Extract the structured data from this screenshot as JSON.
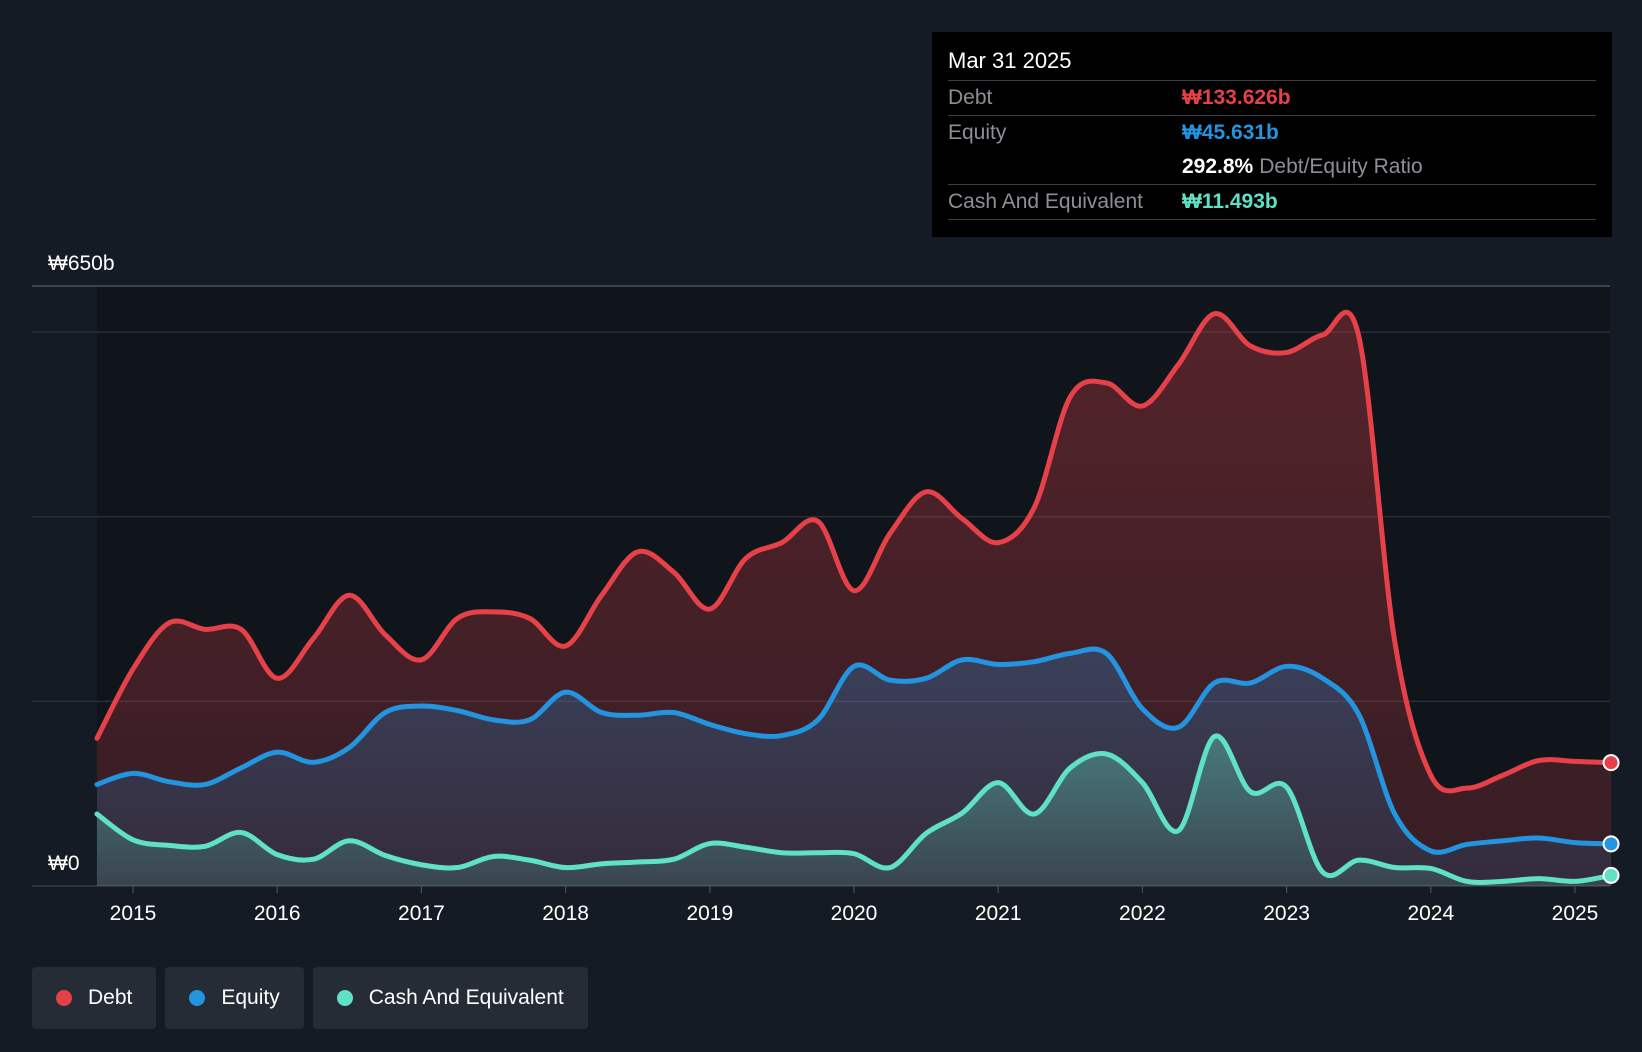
{
  "tooltip": {
    "date": "Mar 31 2025",
    "debt_label": "Debt",
    "debt_value": "₩133.626b",
    "equity_label": "Equity",
    "equity_value": "₩45.631b",
    "ratio_value": "292.8%",
    "ratio_label": "Debt/Equity Ratio",
    "cash_label": "Cash And Equivalent",
    "cash_value": "₩11.493b"
  },
  "legend": {
    "debt": "Debt",
    "equity": "Equity",
    "cash": "Cash And Equivalent"
  },
  "colors": {
    "debt": "#e64148",
    "equity": "#2394df",
    "cash": "#5fe1c6",
    "background": "#151b24"
  },
  "chart_data": {
    "type": "area",
    "title": "",
    "xlabel": "",
    "ylabel": "",
    "ylim": [
      0,
      650
    ],
    "y_unit": "₩ billions",
    "y_tick_labels": [
      "₩650b",
      "₩0"
    ],
    "x_ticks": [
      2015,
      2016,
      2017,
      2018,
      2019,
      2020,
      2021,
      2022,
      2023,
      2024,
      2025
    ],
    "x_tick_labels": [
      "2015",
      "2016",
      "2017",
      "2018",
      "2019",
      "2020",
      "2021",
      "2022",
      "2023",
      "2024",
      "2025"
    ],
    "gridlines": [
      0,
      200,
      400,
      600,
      650
    ],
    "x": [
      2014.75,
      2015.0,
      2015.25,
      2015.5,
      2015.75,
      2016.0,
      2016.25,
      2016.5,
      2016.75,
      2017.0,
      2017.25,
      2017.5,
      2017.75,
      2018.0,
      2018.25,
      2018.5,
      2018.75,
      2019.0,
      2019.25,
      2019.5,
      2019.75,
      2020.0,
      2020.25,
      2020.5,
      2020.75,
      2021.0,
      2021.25,
      2021.5,
      2021.75,
      2022.0,
      2022.25,
      2022.5,
      2022.75,
      2023.0,
      2023.25,
      2023.5,
      2023.75,
      2024.0,
      2024.25,
      2024.5,
      2024.75,
      2025.0,
      2025.25
    ],
    "series": [
      {
        "name": "Debt",
        "values": [
          160,
          235,
          285,
          278,
          278,
          225,
          268,
          315,
          272,
          245,
          290,
          297,
          290,
          260,
          315,
          362,
          340,
          300,
          355,
          372,
          395,
          320,
          382,
          427,
          398,
          372,
          410,
          530,
          545,
          520,
          565,
          620,
          585,
          578,
          597,
          596,
          265,
          120,
          106,
          120,
          136,
          135,
          133.6
        ]
      },
      {
        "name": "Equity",
        "values": [
          110,
          122,
          113,
          110,
          128,
          145,
          134,
          150,
          188,
          195,
          190,
          180,
          180,
          210,
          188,
          185,
          188,
          175,
          165,
          163,
          180,
          238,
          223,
          225,
          245,
          240,
          243,
          252,
          252,
          192,
          172,
          220,
          220,
          238,
          225,
          186,
          78,
          38,
          45,
          49,
          52,
          47,
          45.6
        ]
      },
      {
        "name": "Cash And Equivalent",
        "values": [
          78,
          50,
          44,
          43,
          58,
          34,
          29,
          49,
          33,
          23,
          20,
          32,
          28,
          20,
          24,
          26,
          29,
          46,
          42,
          36,
          36,
          35,
          20,
          57,
          79,
          112,
          78,
          128,
          143,
          112,
          60,
          162,
          102,
          107,
          15,
          28,
          20,
          19,
          5,
          5,
          8,
          5,
          11.5
        ]
      }
    ]
  }
}
